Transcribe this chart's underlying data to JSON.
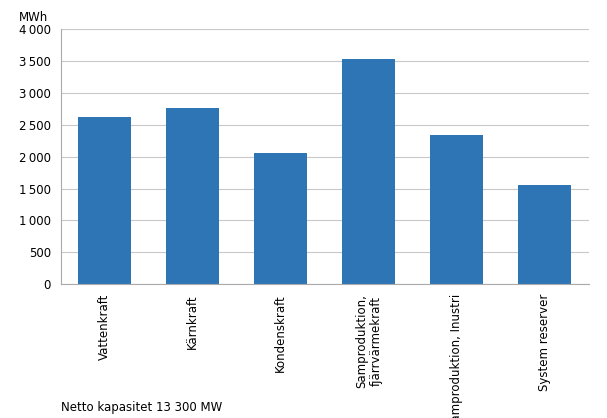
{
  "categories": [
    "Vattenkraft",
    "Kärnkraft",
    "Kondenskraft",
    "Samproduktion,\nfjärrvärmekraft",
    "Samproduktion, Inustri",
    "System reserver"
  ],
  "values": [
    2620,
    2760,
    2060,
    3540,
    2340,
    1560
  ],
  "bar_color": "#2E75B6",
  "ylabel": "MWh",
  "ylim": [
    0,
    4000
  ],
  "yticks": [
    0,
    500,
    1000,
    1500,
    2000,
    2500,
    3000,
    3500,
    4000
  ],
  "footnote": "Netto kapasitet 13 300 MW",
  "bar_width": 0.6,
  "background_color": "#ffffff",
  "grid_color": "#c8c8c8"
}
